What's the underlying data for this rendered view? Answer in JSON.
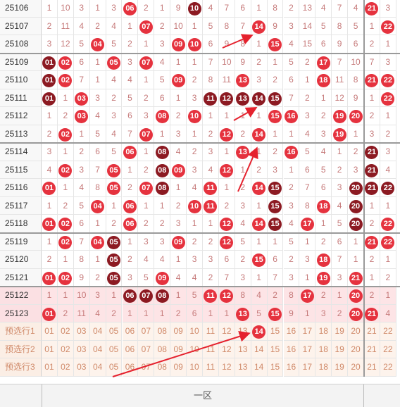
{
  "rows": [
    {
      "issue": "25106",
      "cells": [
        "1",
        "10",
        "3",
        "1",
        "3",
        "06",
        "2",
        "1",
        "9",
        "10",
        "4",
        "7",
        "6",
        "1",
        "8",
        "2",
        "13",
        "4",
        "7",
        "4",
        "21",
        "3"
      ],
      "balls": {
        "5": "red",
        "9": "dark",
        "20": "red"
      }
    },
    {
      "issue": "25107",
      "cells": [
        "2",
        "11",
        "4",
        "2",
        "4",
        "1",
        "07",
        "2",
        "10",
        "1",
        "5",
        "8",
        "7",
        "14",
        "9",
        "3",
        "14",
        "5",
        "8",
        "5",
        "1",
        "22"
      ],
      "balls": {
        "6": "red",
        "13": "red",
        "21": "red"
      }
    },
    {
      "issue": "25108",
      "cells": [
        "3",
        "12",
        "5",
        "04",
        "5",
        "2",
        "1",
        "3",
        "09",
        "10",
        "6",
        "9",
        "8",
        "1",
        "15",
        "4",
        "15",
        "6",
        "9",
        "6",
        "2",
        "1"
      ],
      "balls": {
        "3": "red",
        "8": "red",
        "9": "red",
        "14": "red"
      }
    },
    {
      "issue": "25109",
      "cells": [
        "01",
        "02",
        "6",
        "1",
        "05",
        "3",
        "07",
        "4",
        "1",
        "1",
        "7",
        "10",
        "9",
        "2",
        "1",
        "5",
        "2",
        "17",
        "7",
        "10",
        "7",
        "3"
      ],
      "balls": {
        "0": "dark",
        "1": "red",
        "4": "red",
        "6": "red",
        "17": "red"
      }
    },
    {
      "issue": "25110",
      "cells": [
        "01",
        "02",
        "7",
        "1",
        "4",
        "4",
        "1",
        "5",
        "09",
        "2",
        "8",
        "11",
        "13",
        "3",
        "2",
        "6",
        "1",
        "18",
        "11",
        "8",
        "21",
        "22"
      ],
      "balls": {
        "0": "dark",
        "1": "red",
        "8": "red",
        "12": "red",
        "17": "red",
        "20": "red",
        "21": "red"
      }
    },
    {
      "issue": "25111",
      "cells": [
        "01",
        "1",
        "03",
        "3",
        "2",
        "5",
        "2",
        "6",
        "1",
        "3",
        "11",
        "12",
        "13",
        "14",
        "15",
        "7",
        "2",
        "1",
        "12",
        "9",
        "1",
        "22"
      ],
      "balls": {
        "0": "dark",
        "2": "red",
        "10": "dark",
        "11": "dark",
        "12": "dark",
        "13": "dark",
        "14": "dark",
        "21": "red"
      }
    },
    {
      "issue": "25112",
      "cells": [
        "1",
        "2",
        "03",
        "4",
        "3",
        "6",
        "3",
        "08",
        "2",
        "10",
        "1",
        "1",
        "1",
        "1",
        "15",
        "16",
        "3",
        "2",
        "19",
        "20",
        "2",
        "1"
      ],
      "balls": {
        "2": "red",
        "7": "red",
        "9": "red",
        "14": "red",
        "15": "red",
        "18": "red",
        "19": "red"
      }
    },
    {
      "issue": "25113",
      "cells": [
        "2",
        "02",
        "1",
        "5",
        "4",
        "7",
        "07",
        "1",
        "3",
        "1",
        "2",
        "12",
        "2",
        "14",
        "1",
        "1",
        "4",
        "3",
        "19",
        "1",
        "3",
        "2"
      ],
      "balls": {
        "1": "red",
        "6": "red",
        "11": "red",
        "13": "red",
        "18": "red"
      }
    },
    {
      "issue": "25114",
      "cells": [
        "3",
        "1",
        "2",
        "6",
        "5",
        "06",
        "1",
        "08",
        "4",
        "2",
        "3",
        "1",
        "13",
        "1",
        "2",
        "16",
        "5",
        "4",
        "1",
        "2",
        "21",
        "3"
      ],
      "balls": {
        "5": "red",
        "7": "dark",
        "12": "red",
        "15": "red",
        "20": "dark"
      }
    },
    {
      "issue": "25115",
      "cells": [
        "4",
        "02",
        "3",
        "7",
        "05",
        "1",
        "2",
        "08",
        "09",
        "3",
        "4",
        "12",
        "1",
        "2",
        "3",
        "1",
        "6",
        "5",
        "2",
        "3",
        "21",
        "4"
      ],
      "balls": {
        "1": "red",
        "4": "red",
        "7": "dark",
        "8": "red",
        "11": "red",
        "20": "dark"
      }
    },
    {
      "issue": "25116",
      "cells": [
        "01",
        "1",
        "4",
        "8",
        "05",
        "2",
        "07",
        "08",
        "1",
        "4",
        "11",
        "1",
        "2",
        "14",
        "15",
        "2",
        "7",
        "6",
        "3",
        "20",
        "21",
        "22"
      ],
      "balls": {
        "0": "red",
        "4": "red",
        "6": "red",
        "7": "dark",
        "10": "red",
        "13": "red",
        "14": "dark",
        "19": "dark",
        "20": "dark",
        "21": "dark"
      }
    },
    {
      "issue": "25117",
      "cells": [
        "1",
        "2",
        "5",
        "04",
        "1",
        "06",
        "1",
        "1",
        "2",
        "10",
        "11",
        "2",
        "3",
        "1",
        "15",
        "3",
        "8",
        "18",
        "4",
        "20",
        "1",
        "1"
      ],
      "balls": {
        "3": "red",
        "5": "red",
        "9": "red",
        "10": "red",
        "14": "dark",
        "17": "red",
        "19": "dark"
      }
    },
    {
      "issue": "25118",
      "cells": [
        "01",
        "02",
        "6",
        "1",
        "2",
        "06",
        "2",
        "2",
        "3",
        "1",
        "1",
        "12",
        "4",
        "14",
        "15",
        "4",
        "17",
        "1",
        "5",
        "20",
        "2",
        "22"
      ],
      "balls": {
        "0": "red",
        "1": "red",
        "5": "red",
        "11": "red",
        "13": "red",
        "14": "dark",
        "16": "red",
        "19": "dark",
        "21": "red"
      }
    },
    {
      "issue": "25119",
      "cells": [
        "1",
        "02",
        "7",
        "04",
        "05",
        "1",
        "3",
        "3",
        "09",
        "2",
        "2",
        "12",
        "5",
        "1",
        "1",
        "5",
        "1",
        "2",
        "6",
        "1",
        "21",
        "22"
      ],
      "balls": {
        "1": "red",
        "3": "red",
        "4": "dark",
        "8": "red",
        "11": "red",
        "20": "red",
        "21": "red"
      }
    },
    {
      "issue": "25120",
      "cells": [
        "2",
        "1",
        "8",
        "1",
        "05",
        "2",
        "4",
        "4",
        "1",
        "3",
        "3",
        "6",
        "2",
        "15",
        "6",
        "2",
        "3",
        "18",
        "7",
        "1",
        "2",
        "1"
      ],
      "balls": {
        "4": "dark",
        "13": "red",
        "17": "red"
      }
    },
    {
      "issue": "25121",
      "cells": [
        "01",
        "02",
        "9",
        "2",
        "05",
        "3",
        "5",
        "09",
        "4",
        "4",
        "2",
        "7",
        "3",
        "1",
        "7",
        "3",
        "1",
        "19",
        "3",
        "21",
        "1",
        "2"
      ],
      "balls": {
        "0": "red",
        "1": "red",
        "4": "dark",
        "7": "red",
        "17": "red",
        "19": "red"
      }
    },
    {
      "issue": "25122",
      "cells": [
        "1",
        "1",
        "10",
        "3",
        "1",
        "06",
        "07",
        "08",
        "1",
        "5",
        "11",
        "12",
        "8",
        "4",
        "2",
        "8",
        "17",
        "2",
        "1",
        "20",
        "2",
        "1"
      ],
      "balls": {
        "5": "dark",
        "6": "dark",
        "7": "dark",
        "10": "red",
        "11": "red",
        "16": "red",
        "19": "red"
      }
    },
    {
      "issue": "25123",
      "cells": [
        "01",
        "2",
        "11",
        "4",
        "2",
        "1",
        "1",
        "1",
        "2",
        "6",
        "1",
        "1",
        "13",
        "5",
        "15",
        "9",
        "1",
        "3",
        "2",
        "20",
        "21",
        "4"
      ],
      "balls": {
        "0": "red",
        "12": "red",
        "14": "red",
        "19": "red",
        "20": "red"
      }
    }
  ],
  "pink_rows": [
    16,
    17
  ],
  "predict": [
    {
      "label": "预选行1",
      "cells": [
        "01",
        "02",
        "03",
        "04",
        "05",
        "06",
        "07",
        "08",
        "09",
        "10",
        "11",
        "12",
        "13",
        "14",
        "15",
        "16",
        "17",
        "18",
        "19",
        "20",
        "21",
        "22"
      ],
      "balls": {
        "13": "red"
      }
    },
    {
      "label": "预选行2",
      "cells": [
        "01",
        "02",
        "03",
        "04",
        "05",
        "06",
        "07",
        "08",
        "09",
        "10",
        "11",
        "12",
        "13",
        "14",
        "15",
        "16",
        "17",
        "18",
        "19",
        "20",
        "21",
        "22"
      ],
      "balls": {}
    },
    {
      "label": "预选行3",
      "cells": [
        "01",
        "02",
        "03",
        "04",
        "05",
        "06",
        "07",
        "08",
        "09",
        "10",
        "11",
        "12",
        "13",
        "14",
        "15",
        "16",
        "17",
        "18",
        "19",
        "20",
        "21",
        "22"
      ],
      "balls": {}
    }
  ],
  "zone_label": "一区",
  "colors": {
    "ball_red": "#e5323e",
    "ball_dark": "#8c1a22",
    "arrow": "#e5222e"
  }
}
